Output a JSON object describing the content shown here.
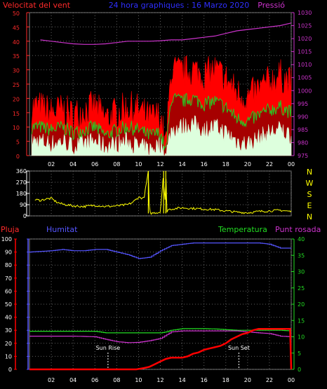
{
  "header": {
    "title": "24 hora graphiques : 16 Marzo 2020"
  },
  "colors": {
    "wind_axis": "#ff2a2a",
    "pressure": "#cc33cc",
    "title": "#2f2fff",
    "gust": "#ff0000",
    "avg_wind": "#22cc22",
    "min_wind": "#ddffdd",
    "direction": "#ffff00",
    "humidity": "#5555ff",
    "temperature": "#22dd22",
    "dewpoint": "#cc33cc",
    "rain": "#ff0000",
    "label_white": "#ffffff",
    "grid": "#606060"
  },
  "chart_data": [
    {
      "type": "area",
      "x_ticks": [
        "02",
        "04",
        "06",
        "08",
        "10",
        "12",
        "14",
        "16",
        "18",
        "20",
        "22",
        "00"
      ],
      "left_axis": {
        "label": "Velocitat del vent",
        "range": [
          0,
          50
        ],
        "ticks": [
          0,
          5,
          10,
          15,
          20,
          25,
          30,
          35,
          40,
          45,
          50
        ]
      },
      "right_axis": {
        "label": "Pressió",
        "range": [
          975,
          1030
        ],
        "ticks": [
          975,
          980,
          985,
          990,
          995,
          1000,
          1005,
          1010,
          1015,
          1020,
          1025,
          1030
        ]
      },
      "series": [
        {
          "role": "gust",
          "x": [
            1,
            2,
            3,
            4,
            5,
            6,
            7,
            8,
            9,
            10,
            11,
            12,
            12.5,
            13,
            14,
            15,
            16,
            17,
            18,
            19,
            20,
            21,
            22,
            23,
            24
          ],
          "values": [
            17,
            15,
            16,
            14,
            16,
            17,
            13,
            15,
            17,
            16,
            13,
            14,
            3,
            30,
            29,
            30,
            28,
            30,
            27,
            22,
            20,
            23,
            26,
            28,
            25
          ]
        },
        {
          "role": "average",
          "x": [
            1,
            2,
            3,
            4,
            5,
            6,
            7,
            8,
            9,
            10,
            11,
            12,
            12.5,
            13,
            14,
            15,
            16,
            17,
            18,
            19,
            20,
            21,
            22,
            23,
            24
          ],
          "values": [
            10,
            9,
            10,
            8,
            9,
            10,
            7,
            9,
            10,
            9,
            7,
            8,
            1,
            20,
            19,
            20,
            18,
            19,
            17,
            13,
            12,
            14,
            16,
            17,
            15
          ]
        },
        {
          "role": "minimum",
          "x": [
            1,
            2,
            3,
            4,
            5,
            6,
            7,
            8,
            9,
            10,
            11,
            12,
            12.5,
            13,
            14,
            15,
            16,
            17,
            18,
            19,
            20,
            21,
            22,
            23,
            24
          ],
          "values": [
            5,
            4,
            5,
            3,
            4,
            5,
            3,
            4,
            5,
            3,
            2,
            4,
            0,
            9,
            10,
            11,
            9,
            10,
            8,
            5,
            4,
            6,
            8,
            9,
            7
          ]
        },
        {
          "role": "pressure",
          "axis": "right",
          "x": [
            1,
            2,
            3,
            4,
            5,
            6,
            7,
            8,
            9,
            10,
            11,
            12,
            13,
            14,
            15,
            16,
            17,
            18,
            19,
            20,
            21,
            22,
            23,
            24
          ],
          "values": [
            1019.5,
            1019,
            1018.5,
            1018,
            1017.8,
            1017.8,
            1018,
            1018.5,
            1019,
            1019,
            1019,
            1019.2,
            1019.5,
            1019.5,
            1020,
            1020.5,
            1021,
            1022,
            1023,
            1023.5,
            1024,
            1024.5,
            1025,
            1026
          ]
        }
      ]
    },
    {
      "type": "line",
      "x_ticks": [
        "02",
        "04",
        "06",
        "08",
        "10",
        "12",
        "14",
        "16",
        "18",
        "20",
        "22",
        "00"
      ],
      "left_axis": {
        "range": [
          0,
          360
        ],
        "ticks": [
          0,
          90,
          180,
          270,
          360
        ]
      },
      "right_axis": {
        "labels": [
          "N",
          "W",
          "S",
          "E",
          "N"
        ]
      },
      "series": [
        {
          "role": "direction",
          "x": [
            0.5,
            1,
            1.5,
            2,
            2.5,
            3,
            4,
            5,
            6,
            7,
            8,
            9,
            9.5,
            10,
            10.5,
            10.9,
            11,
            11.1,
            11.5,
            12,
            12.3,
            12.4,
            12.5,
            12.6,
            12.7,
            13,
            14,
            15,
            16,
            17,
            18,
            19,
            20,
            21,
            22,
            23,
            24
          ],
          "values": [
            130,
            125,
            135,
            140,
            110,
            95,
            80,
            75,
            85,
            75,
            80,
            90,
            110,
            150,
            140,
            360,
            30,
            20,
            25,
            30,
            360,
            20,
            360,
            35,
            50,
            55,
            65,
            60,
            55,
            50,
            40,
            30,
            25,
            35,
            40,
            45,
            35
          ]
        }
      ]
    },
    {
      "type": "line",
      "x_ticks": [
        "02",
        "04",
        "06",
        "08",
        "10",
        "12",
        "14",
        "16",
        "18",
        "20",
        "22",
        "00"
      ],
      "left_axis": {
        "range": [
          0,
          100
        ],
        "ticks": [
          0,
          10,
          20,
          30,
          40,
          50,
          60,
          70,
          80,
          90,
          100
        ]
      },
      "right_axis": {
        "range": [
          0,
          40
        ],
        "ticks": [
          0,
          5,
          10,
          15,
          20,
          25,
          30,
          35,
          40
        ]
      },
      "labels": {
        "rain": "Pluja",
        "humidity": "Humitat",
        "temperature": "Temperatura",
        "dewpoint": "Punt rosada",
        "sunrise": "Sun Rise",
        "sunset": "Sun Set"
      },
      "sunrise_x": 7.2,
      "sunset_x": 19.2,
      "series": [
        {
          "role": "humidity",
          "x": [
            0,
            2,
            3,
            4,
            5,
            6,
            7,
            8,
            9,
            10,
            11,
            12,
            13,
            14,
            15,
            16,
            17,
            18,
            19,
            20,
            21,
            22,
            23,
            24
          ],
          "values": [
            90,
            91,
            92,
            91,
            91,
            92,
            92,
            90,
            88,
            85,
            86,
            91,
            95,
            96,
            97,
            97,
            97,
            97,
            97,
            97,
            97,
            96,
            93,
            93
          ]
        },
        {
          "role": "temperature",
          "axis": "right",
          "x": [
            0,
            2,
            4,
            6,
            7,
            8,
            10,
            12,
            12.5,
            13,
            14,
            15,
            16,
            17,
            18,
            19,
            20,
            21,
            22,
            23,
            24
          ],
          "values": [
            11.7,
            11.7,
            11.7,
            11.7,
            11.2,
            11.2,
            11.2,
            11.2,
            11.5,
            12,
            12.5,
            12.5,
            12.5,
            12.4,
            12.2,
            12,
            12,
            12,
            12,
            12,
            11.8
          ]
        },
        {
          "role": "dewpoint",
          "axis": "right",
          "x": [
            0,
            2,
            4,
            6,
            7,
            8,
            9,
            10,
            11,
            12,
            12.5,
            13,
            14,
            15,
            16,
            17,
            18,
            19,
            20,
            21,
            22,
            23,
            24
          ],
          "values": [
            10.2,
            10.2,
            10.2,
            10,
            9.2,
            8.5,
            8.2,
            8.3,
            8.8,
            9.5,
            10.5,
            11.5,
            11.8,
            11.8,
            11.8,
            11.8,
            11.8,
            11.8,
            11.5,
            11.2,
            11,
            10.2,
            10
          ]
        },
        {
          "role": "rain",
          "x": [
            0,
            9,
            9.8,
            10.5,
            11,
            11.5,
            12,
            12.5,
            13,
            13.5,
            14,
            14.5,
            15,
            15.5,
            16,
            16.5,
            17,
            17.5,
            18,
            18.5,
            19,
            19.5,
            20,
            20.5,
            21,
            22,
            23,
            23.9,
            24
          ],
          "values": [
            0,
            0,
            0,
            1,
            2,
            4,
            6,
            8,
            9,
            9,
            9,
            10,
            12,
            13,
            15,
            16,
            17,
            18,
            20,
            23,
            25,
            27,
            28,
            30,
            31,
            31,
            31,
            31,
            0
          ]
        }
      ]
    }
  ]
}
